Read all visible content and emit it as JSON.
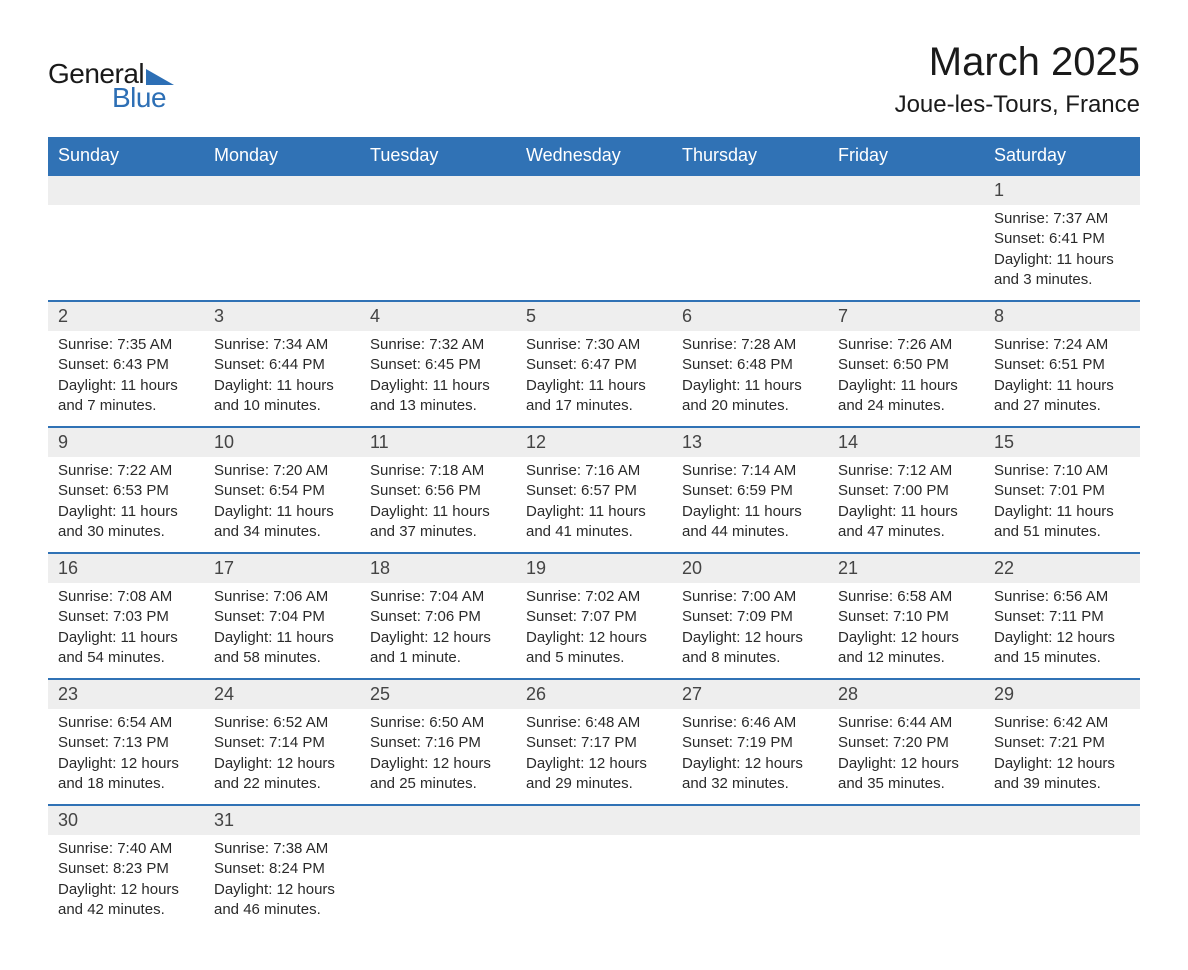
{
  "logo": {
    "general": "General",
    "blue": "Blue"
  },
  "title": "March 2025",
  "subtitle": "Joue-les-Tours, France",
  "colors": {
    "header_bg": "#3072b5",
    "header_fg": "#ffffff",
    "daynum_bg": "#eeeeee",
    "border": "#3072b5",
    "text": "#2a2a2a"
  },
  "weekdays": [
    "Sunday",
    "Monday",
    "Tuesday",
    "Wednesday",
    "Thursday",
    "Friday",
    "Saturday"
  ],
  "weeks": [
    [
      null,
      null,
      null,
      null,
      null,
      null,
      {
        "n": "1",
        "sunrise": "Sunrise: 7:37 AM",
        "sunset": "Sunset: 6:41 PM",
        "dl1": "Daylight: 11 hours",
        "dl2": "and 3 minutes."
      }
    ],
    [
      {
        "n": "2",
        "sunrise": "Sunrise: 7:35 AM",
        "sunset": "Sunset: 6:43 PM",
        "dl1": "Daylight: 11 hours",
        "dl2": "and 7 minutes."
      },
      {
        "n": "3",
        "sunrise": "Sunrise: 7:34 AM",
        "sunset": "Sunset: 6:44 PM",
        "dl1": "Daylight: 11 hours",
        "dl2": "and 10 minutes."
      },
      {
        "n": "4",
        "sunrise": "Sunrise: 7:32 AM",
        "sunset": "Sunset: 6:45 PM",
        "dl1": "Daylight: 11 hours",
        "dl2": "and 13 minutes."
      },
      {
        "n": "5",
        "sunrise": "Sunrise: 7:30 AM",
        "sunset": "Sunset: 6:47 PM",
        "dl1": "Daylight: 11 hours",
        "dl2": "and 17 minutes."
      },
      {
        "n": "6",
        "sunrise": "Sunrise: 7:28 AM",
        "sunset": "Sunset: 6:48 PM",
        "dl1": "Daylight: 11 hours",
        "dl2": "and 20 minutes."
      },
      {
        "n": "7",
        "sunrise": "Sunrise: 7:26 AM",
        "sunset": "Sunset: 6:50 PM",
        "dl1": "Daylight: 11 hours",
        "dl2": "and 24 minutes."
      },
      {
        "n": "8",
        "sunrise": "Sunrise: 7:24 AM",
        "sunset": "Sunset: 6:51 PM",
        "dl1": "Daylight: 11 hours",
        "dl2": "and 27 minutes."
      }
    ],
    [
      {
        "n": "9",
        "sunrise": "Sunrise: 7:22 AM",
        "sunset": "Sunset: 6:53 PM",
        "dl1": "Daylight: 11 hours",
        "dl2": "and 30 minutes."
      },
      {
        "n": "10",
        "sunrise": "Sunrise: 7:20 AM",
        "sunset": "Sunset: 6:54 PM",
        "dl1": "Daylight: 11 hours",
        "dl2": "and 34 minutes."
      },
      {
        "n": "11",
        "sunrise": "Sunrise: 7:18 AM",
        "sunset": "Sunset: 6:56 PM",
        "dl1": "Daylight: 11 hours",
        "dl2": "and 37 minutes."
      },
      {
        "n": "12",
        "sunrise": "Sunrise: 7:16 AM",
        "sunset": "Sunset: 6:57 PM",
        "dl1": "Daylight: 11 hours",
        "dl2": "and 41 minutes."
      },
      {
        "n": "13",
        "sunrise": "Sunrise: 7:14 AM",
        "sunset": "Sunset: 6:59 PM",
        "dl1": "Daylight: 11 hours",
        "dl2": "and 44 minutes."
      },
      {
        "n": "14",
        "sunrise": "Sunrise: 7:12 AM",
        "sunset": "Sunset: 7:00 PM",
        "dl1": "Daylight: 11 hours",
        "dl2": "and 47 minutes."
      },
      {
        "n": "15",
        "sunrise": "Sunrise: 7:10 AM",
        "sunset": "Sunset: 7:01 PM",
        "dl1": "Daylight: 11 hours",
        "dl2": "and 51 minutes."
      }
    ],
    [
      {
        "n": "16",
        "sunrise": "Sunrise: 7:08 AM",
        "sunset": "Sunset: 7:03 PM",
        "dl1": "Daylight: 11 hours",
        "dl2": "and 54 minutes."
      },
      {
        "n": "17",
        "sunrise": "Sunrise: 7:06 AM",
        "sunset": "Sunset: 7:04 PM",
        "dl1": "Daylight: 11 hours",
        "dl2": "and 58 minutes."
      },
      {
        "n": "18",
        "sunrise": "Sunrise: 7:04 AM",
        "sunset": "Sunset: 7:06 PM",
        "dl1": "Daylight: 12 hours",
        "dl2": "and 1 minute."
      },
      {
        "n": "19",
        "sunrise": "Sunrise: 7:02 AM",
        "sunset": "Sunset: 7:07 PM",
        "dl1": "Daylight: 12 hours",
        "dl2": "and 5 minutes."
      },
      {
        "n": "20",
        "sunrise": "Sunrise: 7:00 AM",
        "sunset": "Sunset: 7:09 PM",
        "dl1": "Daylight: 12 hours",
        "dl2": "and 8 minutes."
      },
      {
        "n": "21",
        "sunrise": "Sunrise: 6:58 AM",
        "sunset": "Sunset: 7:10 PM",
        "dl1": "Daylight: 12 hours",
        "dl2": "and 12 minutes."
      },
      {
        "n": "22",
        "sunrise": "Sunrise: 6:56 AM",
        "sunset": "Sunset: 7:11 PM",
        "dl1": "Daylight: 12 hours",
        "dl2": "and 15 minutes."
      }
    ],
    [
      {
        "n": "23",
        "sunrise": "Sunrise: 6:54 AM",
        "sunset": "Sunset: 7:13 PM",
        "dl1": "Daylight: 12 hours",
        "dl2": "and 18 minutes."
      },
      {
        "n": "24",
        "sunrise": "Sunrise: 6:52 AM",
        "sunset": "Sunset: 7:14 PM",
        "dl1": "Daylight: 12 hours",
        "dl2": "and 22 minutes."
      },
      {
        "n": "25",
        "sunrise": "Sunrise: 6:50 AM",
        "sunset": "Sunset: 7:16 PM",
        "dl1": "Daylight: 12 hours",
        "dl2": "and 25 minutes."
      },
      {
        "n": "26",
        "sunrise": "Sunrise: 6:48 AM",
        "sunset": "Sunset: 7:17 PM",
        "dl1": "Daylight: 12 hours",
        "dl2": "and 29 minutes."
      },
      {
        "n": "27",
        "sunrise": "Sunrise: 6:46 AM",
        "sunset": "Sunset: 7:19 PM",
        "dl1": "Daylight: 12 hours",
        "dl2": "and 32 minutes."
      },
      {
        "n": "28",
        "sunrise": "Sunrise: 6:44 AM",
        "sunset": "Sunset: 7:20 PM",
        "dl1": "Daylight: 12 hours",
        "dl2": "and 35 minutes."
      },
      {
        "n": "29",
        "sunrise": "Sunrise: 6:42 AM",
        "sunset": "Sunset: 7:21 PM",
        "dl1": "Daylight: 12 hours",
        "dl2": "and 39 minutes."
      }
    ],
    [
      {
        "n": "30",
        "sunrise": "Sunrise: 7:40 AM",
        "sunset": "Sunset: 8:23 PM",
        "dl1": "Daylight: 12 hours",
        "dl2": "and 42 minutes."
      },
      {
        "n": "31",
        "sunrise": "Sunrise: 7:38 AM",
        "sunset": "Sunset: 8:24 PM",
        "dl1": "Daylight: 12 hours",
        "dl2": "and 46 minutes."
      },
      null,
      null,
      null,
      null,
      null
    ]
  ]
}
